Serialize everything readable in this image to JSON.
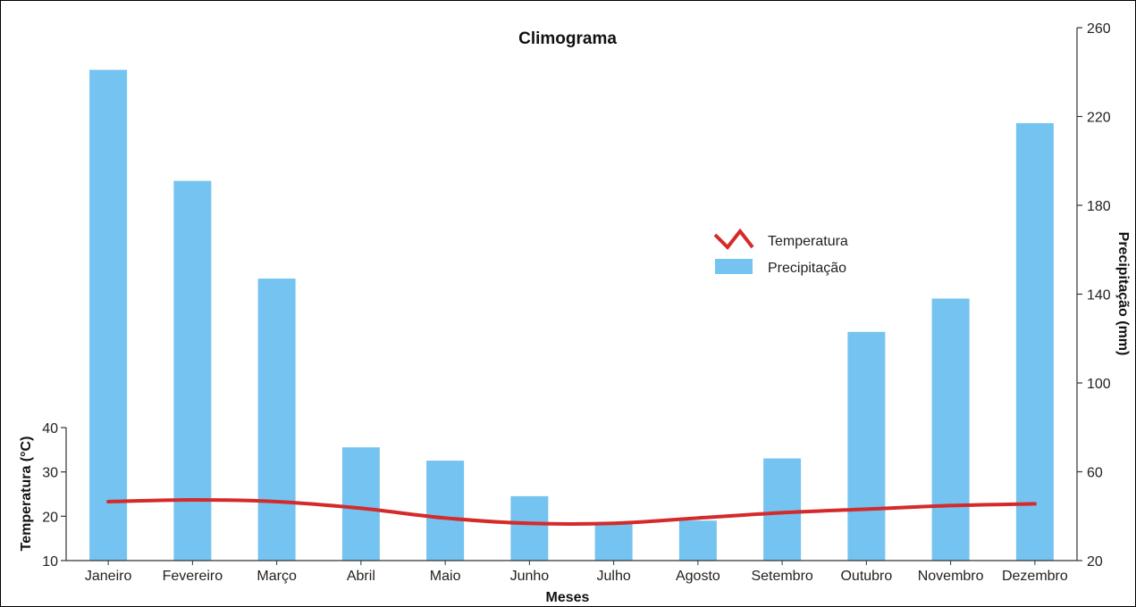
{
  "chart_data": {
    "type": "bar",
    "title": "Climograma",
    "xlabel": "Meses",
    "categories": [
      "Janeiro",
      "Fevereiro",
      "Março",
      "Abril",
      "Maio",
      "Junho",
      "Julho",
      "Agosto",
      "Setembro",
      "Outubro",
      "Novembro",
      "Dezembro"
    ],
    "y_left": {
      "label": "Temperatura (°C)",
      "lim": [
        10,
        40
      ],
      "ticks": [
        10,
        20,
        30,
        40
      ]
    },
    "y_right": {
      "label": "Precipitação (mm)",
      "lim": [
        20,
        260
      ],
      "ticks": [
        20,
        60,
        100,
        140,
        180,
        220,
        260
      ]
    },
    "series": [
      {
        "name": "Precipitação",
        "type": "bar",
        "axis": "right",
        "color": "#74C3F0",
        "values": [
          241,
          191,
          147,
          71,
          65,
          49,
          37,
          38,
          66,
          123,
          138,
          217
        ]
      },
      {
        "name": "Temperatura",
        "type": "line",
        "axis": "left",
        "color": "#D42A2A",
        "values": [
          23.3,
          23.7,
          23.3,
          21.8,
          19.6,
          18.4,
          18.4,
          19.6,
          20.8,
          21.6,
          22.4,
          22.8
        ]
      }
    ],
    "legend": {
      "position": "center-right",
      "items": [
        {
          "label": "Temperatura",
          "icon": "zigzag-line-icon",
          "color": "#D42A2A"
        },
        {
          "label": "Precipitação",
          "icon": "bar-swatch-icon",
          "color": "#74C3F0"
        }
      ]
    },
    "grid": false
  }
}
